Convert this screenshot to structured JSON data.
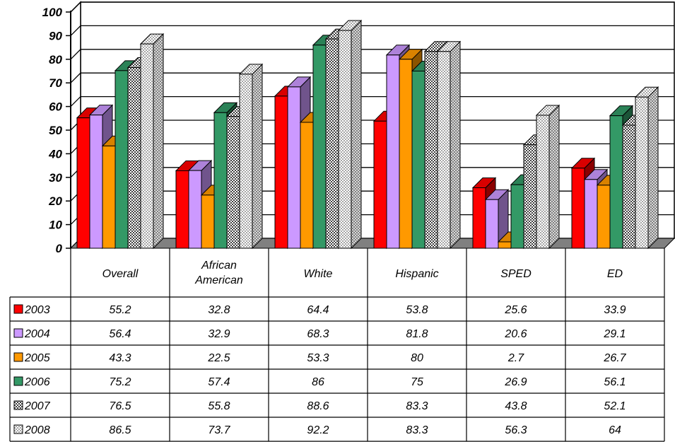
{
  "chart_data": {
    "type": "bar",
    "categories": [
      "Overall",
      "African American",
      "White",
      "Hispanic",
      "SPED",
      "ED"
    ],
    "category_lines": [
      [
        "Overall"
      ],
      [
        "African",
        "American"
      ],
      [
        "White"
      ],
      [
        "Hispanic"
      ],
      [
        "SPED"
      ],
      [
        "ED"
      ]
    ],
    "series": [
      {
        "name": "2003",
        "values": [
          55.2,
          32.8,
          64.4,
          53.8,
          25.6,
          33.9
        ],
        "labels": [
          "55.2",
          "32.8",
          "64.4",
          "53.8",
          "25.6",
          "33.9"
        ],
        "color": "#ff0000",
        "pattern": "solid"
      },
      {
        "name": "2004",
        "values": [
          56.4,
          32.9,
          68.3,
          81.8,
          20.6,
          29.1
        ],
        "labels": [
          "56.4",
          "32.9",
          "68.3",
          "81.8",
          "20.6",
          "29.1"
        ],
        "color": "#cc99ff",
        "pattern": "solid"
      },
      {
        "name": "2005",
        "values": [
          43.3,
          22.5,
          53.3,
          80,
          2.7,
          26.7
        ],
        "labels": [
          "43.3",
          "22.5",
          "53.3",
          "80",
          "2.7",
          "26.7"
        ],
        "color": "#ff9900",
        "pattern": "solid"
      },
      {
        "name": "2006",
        "values": [
          75.2,
          57.4,
          86,
          75,
          26.9,
          56.1
        ],
        "labels": [
          "75.2",
          "57.4",
          "86",
          "75",
          "26.9",
          "56.1"
        ],
        "color": "#339966",
        "pattern": "solid"
      },
      {
        "name": "2007",
        "values": [
          76.5,
          55.8,
          88.6,
          83.3,
          43.8,
          52.1
        ],
        "labels": [
          "76.5",
          "55.8",
          "88.6",
          "83.3",
          "43.8",
          "52.1"
        ],
        "color": "#595959",
        "pattern": "dark-checker"
      },
      {
        "name": "2008",
        "values": [
          86.5,
          73.7,
          92.2,
          83.3,
          56.3,
          64
        ],
        "labels": [
          "86.5",
          "73.7",
          "92.2",
          "83.3",
          "56.3",
          "64"
        ],
        "color": "#c0c0c0",
        "pattern": "light-checker"
      }
    ],
    "y_ticks": [
      "0",
      "10",
      "20",
      "30",
      "40",
      "50",
      "60",
      "70",
      "80",
      "90",
      "100"
    ],
    "ylim": [
      0,
      100
    ],
    "grid": true,
    "legend": "data-table",
    "title": "",
    "xlabel": "",
    "ylabel": ""
  }
}
